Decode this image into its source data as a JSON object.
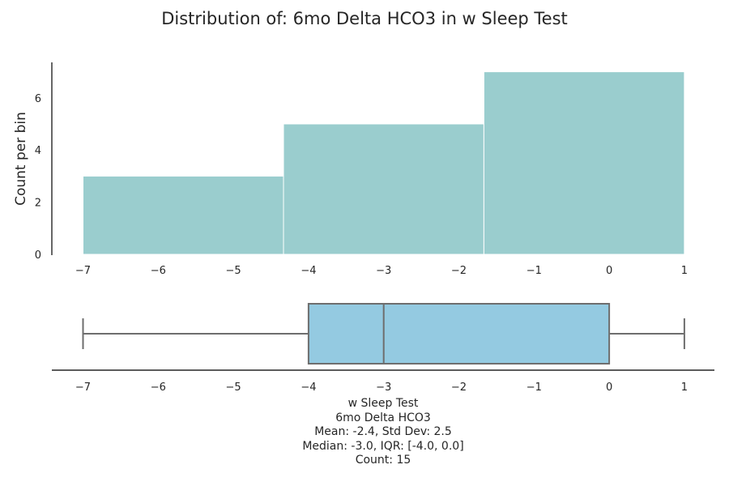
{
  "chart_data": [
    {
      "type": "histogram",
      "title": "Distribution of: 6mo Delta HCO3 in w Sleep Test",
      "ylabel": "Count per bin",
      "xlabel": "",
      "bins": [
        {
          "start": -7.0,
          "end": -4.333,
          "count": 3
        },
        {
          "start": -4.333,
          "end": -1.667,
          "count": 5
        },
        {
          "start": -1.667,
          "end": 1.0,
          "count": 7
        }
      ],
      "xlim": [
        -7.4,
        1.0
      ],
      "ylim": [
        0,
        7
      ],
      "x_ticks": [
        -7,
        -6,
        -5,
        -4,
        -3,
        -2,
        -1,
        0,
        1
      ],
      "x_tick_labels": [
        "−7",
        "−6",
        "−5",
        "−4",
        "−3",
        "−2",
        "−1",
        "0",
        "1"
      ],
      "y_ticks": [
        0,
        2,
        4,
        6
      ],
      "y_tick_labels": [
        "0",
        "2",
        "4",
        "6"
      ],
      "bar_color": "#9acdce",
      "grid": false
    },
    {
      "type": "boxplot",
      "whisker_low": -7,
      "q1": -4,
      "median": -3,
      "q3": 0,
      "whisker_high": 1,
      "x_ticks": [
        -7,
        -6,
        -5,
        -4,
        -3,
        -2,
        -1,
        0,
        1
      ],
      "x_tick_labels": [
        "−7",
        "−6",
        "−5",
        "−4",
        "−3",
        "−2",
        "−1",
        "0",
        "1"
      ],
      "box_color": "#94cae1",
      "line_color": "#6e6e6e",
      "annotation": [
        "w Sleep Test",
        "6mo Delta HCO3",
        "Mean: -2.4, Std Dev: 2.5",
        "Median: -3.0, IQR: [-4.0, 0.0]",
        "Count: 15"
      ]
    }
  ]
}
